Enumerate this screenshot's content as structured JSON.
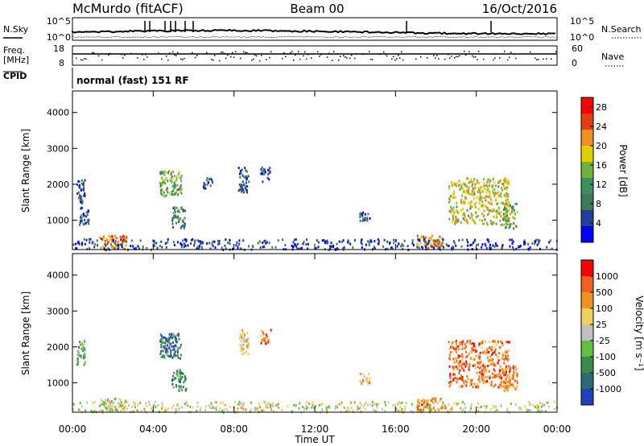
{
  "header": {
    "station": "McMurdo (fitACF)",
    "beam": "Beam 00",
    "date": "16/Oct/2016"
  },
  "panels": {
    "noise": {
      "left_label": "N.Sky",
      "right_label": "N.Search",
      "left_ticks": [
        "10^5",
        "10^0"
      ],
      "right_ticks": [
        "10^5",
        "10^0"
      ]
    },
    "freq": {
      "left_label_1": "Freq.",
      "left_label_2": "[MHz]",
      "right_label": "Nave",
      "left_ticks": [
        "18",
        "8"
      ],
      "right_ticks": [
        "60",
        "0"
      ]
    },
    "cpid": {
      "label": "CPID",
      "mode_text": "normal (fast) 151 RF"
    }
  },
  "chart_data": [
    {
      "type": "heatmap",
      "title": "",
      "xlabel": "",
      "ylabel": "Slant Range [km]",
      "y_ticks": [
        1000,
        2000,
        3000,
        4000
      ],
      "ylim": [
        180,
        4600
      ],
      "x_ticks": [
        "00:00",
        "04:00",
        "08:00",
        "12:00",
        "16:00",
        "20:00",
        "00:00"
      ],
      "xlim_hours": [
        0,
        24
      ],
      "colorbar": {
        "label": "Power [dB]",
        "ticks": [
          4,
          8,
          12,
          16,
          20,
          24,
          28
        ],
        "range": [
          0,
          30
        ],
        "colors": [
          "#0000ff",
          "#2040a0",
          "#3a7a5a",
          "#3c9060",
          "#70b040",
          "#e0d000",
          "#f09020",
          "#e04010",
          "#ff0000"
        ]
      },
      "echo_regions": [
        {
          "t0": 0.2,
          "t1": 0.6,
          "r0": 1500,
          "r1": 2200,
          "level": 0.2
        },
        {
          "t0": 0.3,
          "t1": 0.8,
          "r0": 900,
          "r1": 1400,
          "level": 0.2
        },
        {
          "t0": 1.3,
          "t1": 2.7,
          "r0": 230,
          "r1": 600,
          "level": 0.75
        },
        {
          "t0": 4.3,
          "t1": 5.4,
          "r0": 1700,
          "r1": 2400,
          "level": 0.45
        },
        {
          "t0": 4.9,
          "t1": 5.6,
          "r0": 800,
          "r1": 1400,
          "level": 0.35
        },
        {
          "t0": 6.4,
          "t1": 6.9,
          "r0": 1900,
          "r1": 2200,
          "level": 0.2
        },
        {
          "t0": 8.2,
          "t1": 8.7,
          "r0": 1800,
          "r1": 2500,
          "level": 0.2
        },
        {
          "t0": 9.3,
          "t1": 9.8,
          "r0": 2100,
          "r1": 2500,
          "level": 0.15
        },
        {
          "t0": 14.2,
          "t1": 14.7,
          "r0": 1000,
          "r1": 1300,
          "level": 0.25
        },
        {
          "t0": 17.0,
          "t1": 18.3,
          "r0": 250,
          "r1": 600,
          "level": 0.7
        },
        {
          "t0": 18.6,
          "t1": 21.6,
          "r0": 900,
          "r1": 2200,
          "level": 0.6
        },
        {
          "t0": 21.3,
          "t1": 22.0,
          "r0": 800,
          "r1": 1500,
          "level": 0.45
        },
        {
          "t0": 0.0,
          "t1": 24.0,
          "r0": 200,
          "r1": 500,
          "level": 0.15
        }
      ]
    },
    {
      "type": "heatmap",
      "title": "",
      "xlabel": "Time UT",
      "ylabel": "Slant Range [km]",
      "y_ticks": [
        1000,
        2000,
        3000,
        4000
      ],
      "ylim": [
        180,
        4600
      ],
      "x_ticks": [
        "00:00",
        "04:00",
        "08:00",
        "12:00",
        "16:00",
        "20:00",
        "00:00"
      ],
      "xlim_hours": [
        0,
        24
      ],
      "colorbar": {
        "label": "Velocity [m s⁻¹]",
        "ticks": [
          "1000",
          "500",
          "100",
          "25",
          "-25",
          "-100",
          "-500",
          "-1000"
        ],
        "colors": [
          "#2040c0",
          "#2a6a7a",
          "#3a8a50",
          "#60c040",
          "#c0c0c0",
          "#f0d060",
          "#f09020",
          "#f06020",
          "#ff0000"
        ]
      },
      "echo_regions": [
        {
          "t0": 0.2,
          "t1": 0.6,
          "r0": 1500,
          "r1": 2200,
          "level": 0.3
        },
        {
          "t0": 1.3,
          "t1": 2.7,
          "r0": 230,
          "r1": 600,
          "level": 0.5
        },
        {
          "t0": 4.3,
          "t1": 5.4,
          "r0": 1700,
          "r1": 2400,
          "level": 0.2
        },
        {
          "t0": 4.9,
          "t1": 5.6,
          "r0": 800,
          "r1": 1400,
          "level": 0.25
        },
        {
          "t0": 8.2,
          "t1": 8.7,
          "r0": 1800,
          "r1": 2500,
          "level": 0.6
        },
        {
          "t0": 9.3,
          "t1": 9.8,
          "r0": 2100,
          "r1": 2500,
          "level": 0.8
        },
        {
          "t0": 14.2,
          "t1": 14.7,
          "r0": 1000,
          "r1": 1300,
          "level": 0.65
        },
        {
          "t0": 17.0,
          "t1": 18.3,
          "r0": 250,
          "r1": 600,
          "level": 0.75
        },
        {
          "t0": 18.6,
          "t1": 21.6,
          "r0": 900,
          "r1": 2200,
          "level": 0.78
        },
        {
          "t0": 21.3,
          "t1": 22.0,
          "r0": 800,
          "r1": 1500,
          "level": 0.75
        },
        {
          "t0": 0.0,
          "t1": 24.0,
          "r0": 200,
          "r1": 500,
          "level": 0.55
        }
      ]
    }
  ]
}
